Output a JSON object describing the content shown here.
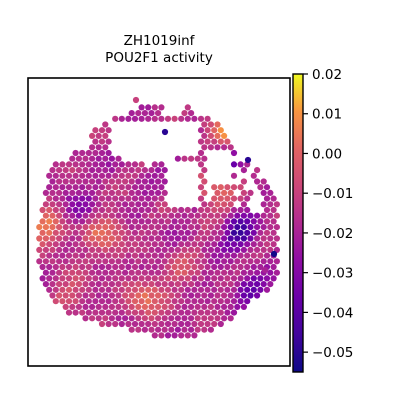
{
  "chart_data": {
    "type": "heatmap",
    "title_line1": "ZH1019inf",
    "title_line2": "POU2F1 activity",
    "xlabel": "",
    "ylabel": "",
    "grid": false,
    "colormap": "plasma",
    "clim": [
      -0.055,
      0.02
    ],
    "colorbar_ticks": [
      {
        "value": 0.02,
        "label": "0.02"
      },
      {
        "value": 0.01,
        "label": "0.01"
      },
      {
        "value": 0.0,
        "label": "0.00"
      },
      {
        "value": -0.01,
        "label": "−0.01"
      },
      {
        "value": -0.02,
        "label": "−0.02"
      },
      {
        "value": -0.03,
        "label": "−0.03"
      },
      {
        "value": -0.04,
        "label": "−0.04"
      },
      {
        "value": -0.05,
        "label": "−0.05"
      }
    ],
    "spot_summary": {
      "typical_value": -0.015,
      "value_range": [
        -0.055,
        0.02
      ],
      "high_activity_regions": [
        "upper-right",
        "left-edge",
        "lower-center"
      ],
      "low_activity_regions": [
        "right-edge",
        "scattered"
      ]
    }
  }
}
